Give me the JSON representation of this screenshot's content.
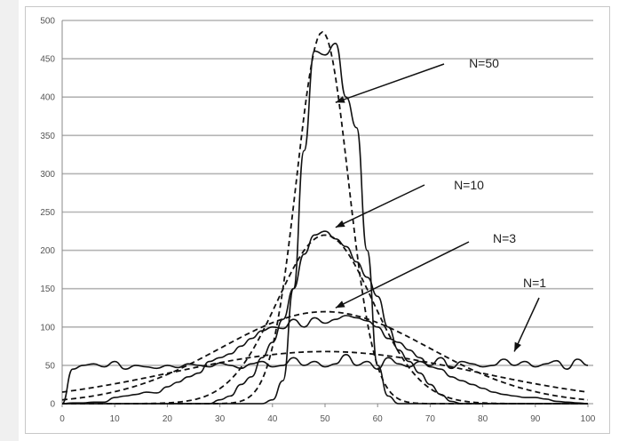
{
  "chart_data": {
    "type": "line",
    "title": "",
    "xlabel": "",
    "ylabel": "",
    "xlim": [
      0,
      100
    ],
    "ylim": [
      0,
      500
    ],
    "xticks": [
      "0",
      "10",
      "20",
      "30",
      "40",
      "50",
      "60",
      "70",
      "80",
      "90",
      "100"
    ],
    "yticks": [
      "0",
      "50",
      "100",
      "150",
      "200",
      "250",
      "300",
      "350",
      "400",
      "450",
      "500"
    ],
    "grid": "horizontal",
    "line_color": "#111111",
    "grid_color": "#b4b4b4",
    "x": [
      0,
      2,
      4,
      6,
      8,
      10,
      12,
      14,
      16,
      18,
      20,
      22,
      24,
      26,
      28,
      30,
      32,
      34,
      36,
      38,
      40,
      42,
      44,
      46,
      48,
      50,
      52,
      54,
      56,
      58,
      60,
      62,
      64,
      66,
      68,
      70,
      72,
      74,
      76,
      78,
      80,
      82,
      84,
      86,
      88,
      90,
      92,
      94,
      96,
      98,
      100
    ],
    "series": [
      {
        "annotation": "N=1",
        "style": "solid",
        "values": [
          0,
          45,
          50,
          52,
          48,
          55,
          45,
          50,
          48,
          46,
          50,
          47,
          52,
          50,
          48,
          53,
          50,
          46,
          52,
          55,
          48,
          50,
          60,
          50,
          55,
          48,
          52,
          64,
          50,
          55,
          45,
          60,
          52,
          48,
          55,
          50,
          60,
          46,
          55,
          52,
          48,
          50,
          58,
          50,
          55,
          48,
          52,
          56,
          45,
          58,
          50
        ]
      },
      {
        "annotation": "N=1",
        "style": "dashed",
        "fit": {
          "mean": 50,
          "sigma": 28.8,
          "peak": 68
        }
      },
      {
        "annotation": "N=3",
        "style": "solid",
        "values": [
          0,
          1,
          1,
          2,
          2,
          8,
          10,
          12,
          15,
          14,
          22,
          28,
          35,
          40,
          55,
          60,
          65,
          75,
          85,
          95,
          100,
          98,
          110,
          100,
          112,
          105,
          110,
          115,
          112,
          108,
          100,
          85,
          80,
          70,
          60,
          48,
          45,
          35,
          30,
          25,
          20,
          15,
          12,
          10,
          8,
          8,
          6,
          3,
          2,
          1,
          0
        ]
      },
      {
        "annotation": "N=3",
        "style": "dashed",
        "fit": {
          "mean": 50,
          "sigma": 19.8,
          "peak": 120
        }
      },
      {
        "annotation": "N=10",
        "style": "solid",
        "values": [
          0,
          0,
          0,
          0,
          0,
          0,
          0,
          0,
          0,
          0,
          0,
          0,
          0,
          0,
          0,
          5,
          10,
          25,
          35,
          60,
          80,
          110,
          150,
          195,
          220,
          225,
          215,
          205,
          185,
          165,
          140,
          100,
          70,
          55,
          40,
          25,
          12,
          3,
          0,
          0,
          0,
          0,
          0,
          0,
          0,
          0,
          0,
          0,
          0,
          0,
          0
        ]
      },
      {
        "annotation": "N=10",
        "style": "dashed",
        "fit": {
          "mean": 50,
          "sigma": 9.1,
          "peak": 220
        }
      },
      {
        "annotation": "N=50",
        "style": "solid",
        "values": [
          0,
          0,
          0,
          0,
          0,
          0,
          0,
          0,
          0,
          0,
          0,
          0,
          0,
          0,
          0,
          0,
          0,
          0,
          0,
          0,
          5,
          30,
          150,
          330,
          460,
          455,
          470,
          400,
          360,
          200,
          50,
          10,
          0,
          0,
          0,
          0,
          0,
          0,
          0,
          0,
          0,
          0,
          0,
          0,
          0,
          0,
          0,
          0,
          0,
          0,
          0
        ]
      },
      {
        "annotation": "N=50",
        "style": "dashed",
        "fit": {
          "mean": 49.5,
          "sigma": 4.9,
          "peak": 485
        }
      }
    ],
    "annotations": [
      {
        "text": "N=50",
        "arrow_to": [
          52,
          393
        ]
      },
      {
        "text": "N=10",
        "arrow_to": [
          52,
          230
        ]
      },
      {
        "text": "N=3",
        "arrow_to": [
          52,
          125
        ]
      },
      {
        "text": "N=1",
        "arrow_to": [
          86,
          68
        ]
      }
    ]
  }
}
